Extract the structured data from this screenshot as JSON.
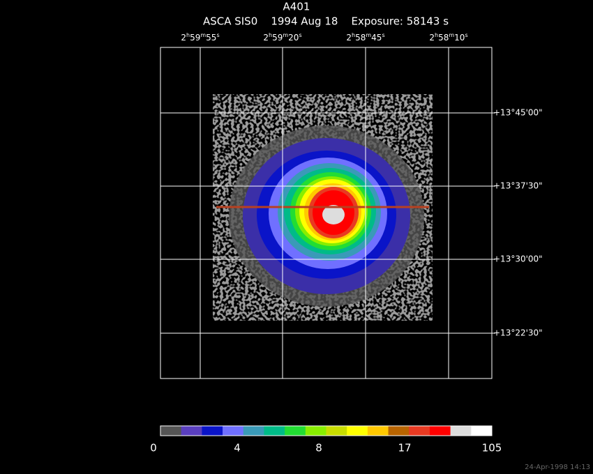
{
  "header": {
    "title": "A401",
    "subtitle": "ASCA SIS0    1994 Aug 18    Exposure: 58143 s"
  },
  "ra_labels": [
    [
      "2",
      "h",
      "59",
      "m",
      "55",
      "s"
    ],
    [
      "2",
      "h",
      "59",
      "m",
      "20",
      "s"
    ],
    [
      "2",
      "h",
      "58",
      "m",
      "45",
      "s"
    ],
    [
      "2",
      "h",
      "58",
      "m",
      "10",
      "s"
    ]
  ],
  "dec_labels": [
    "+13°45'00\"",
    "+13°37'30\"",
    "+13°30'00\"",
    "+13°22'30\""
  ],
  "colorbar": {
    "colors": [
      "#555555",
      "#5a3fbf",
      "#0a14c8",
      "#7070ff",
      "#3a9ab8",
      "#00bb88",
      "#22dd33",
      "#88ee00",
      "#c8dd00",
      "#ffff00",
      "#ffc800",
      "#b86400",
      "#e83a22",
      "#ff0000",
      "#dddddd",
      "#ffffff"
    ],
    "labels": [
      "0",
      "4",
      "8",
      "17",
      "105"
    ]
  },
  "timestamp": "24-Apr-1998 14:13"
}
